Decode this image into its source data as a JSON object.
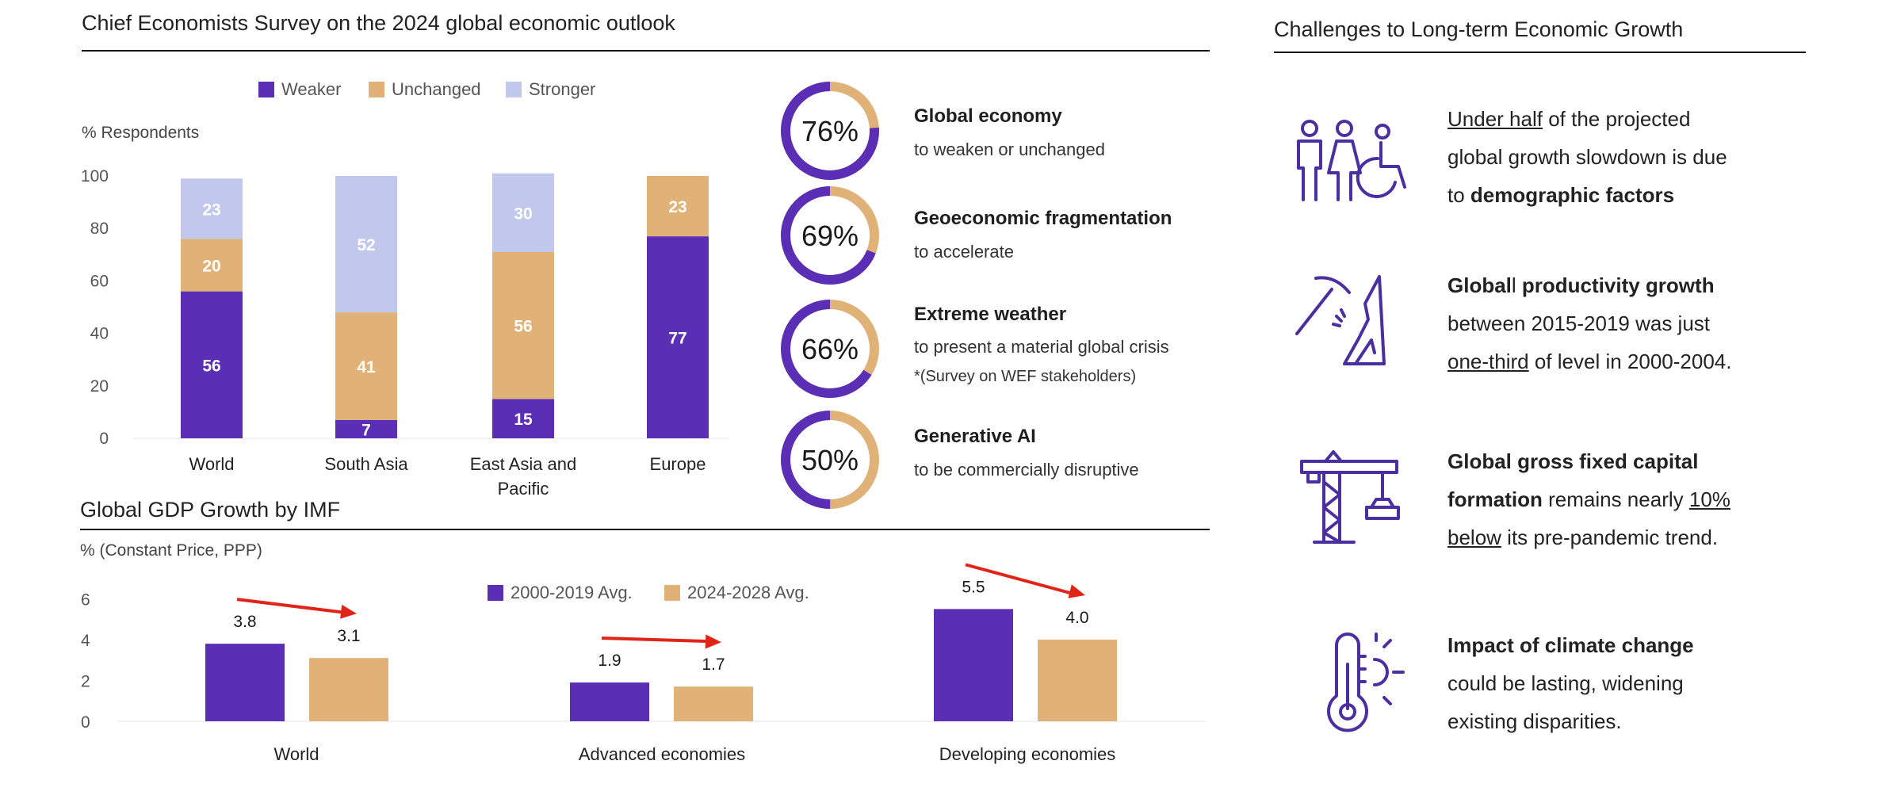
{
  "survey": {
    "title": "Chief Economists Survey on the 2024 global economic outlook",
    "legend": [
      {
        "label": "Weaker",
        "color": "#5b2fb5"
      },
      {
        "label": "Unchanged",
        "color": "#e0b277"
      },
      {
        "label": "Stronger",
        "color": "#c2c8ec"
      }
    ],
    "ylabel": "% Respondents"
  },
  "stats": [
    {
      "value": "76%",
      "pct": 76,
      "title": "Global economy",
      "sub": "to weaken or unchanged",
      "note": ""
    },
    {
      "value": "69%",
      "pct": 69,
      "title": "Geoeconomic fragmentation",
      "sub": "to accelerate",
      "note": ""
    },
    {
      "value": "66%",
      "pct": 66,
      "title": "Extreme weather",
      "sub": "to present a material global crisis",
      "note": "*(Survey on WEF stakeholders)"
    },
    {
      "value": "50%",
      "pct": 50,
      "title": "Generative AI",
      "sub": "to be commercially disruptive",
      "note": ""
    }
  ],
  "gdp": {
    "title": "Global GDP Growth by IMF",
    "ylabel": "% (Constant Price, PPP)",
    "legend": [
      {
        "label": "2000-2019 Avg.",
        "color": "#5b2fb5"
      },
      {
        "label": "2024-2028 Avg.",
        "color": "#e0b277"
      }
    ]
  },
  "challenges": {
    "title": "Challenges to Long-term Economic Growth",
    "items": [
      {
        "icon": "people-icon",
        "parts": [
          {
            "t": "Under half",
            "s": "u"
          },
          {
            "t": " of the projected",
            "s": ""
          },
          {
            "t": "\n",
            "s": "br"
          },
          {
            "t": "global growth slowdown is due",
            "s": ""
          },
          {
            "t": "\n",
            "s": "br"
          },
          {
            "t": "to ",
            "s": ""
          },
          {
            "t": "demographic factors",
            "s": "b"
          }
        ]
      },
      {
        "icon": "pickaxe-icon",
        "parts": [
          {
            "t": "Global",
            "s": "b"
          },
          {
            "t": "l",
            "s": ""
          },
          {
            "t": " productivity growth",
            "s": "b"
          },
          {
            "t": "\n",
            "s": "br"
          },
          {
            "t": "between 2015-2019 was just",
            "s": ""
          },
          {
            "t": "\n",
            "s": "br"
          },
          {
            "t": "one-third",
            "s": "u"
          },
          {
            "t": " of level in 2000-2004.",
            "s": ""
          }
        ]
      },
      {
        "icon": "crane-icon",
        "parts": [
          {
            "t": "Global gross fixed capital",
            "s": "b"
          },
          {
            "t": "\n",
            "s": "br"
          },
          {
            "t": "formation",
            "s": "b"
          },
          {
            "t": " remains nearly ",
            "s": ""
          },
          {
            "t": "10%",
            "s": "u"
          },
          {
            "t": "\n",
            "s": "br"
          },
          {
            "t": "below",
            "s": "u"
          },
          {
            "t": " its pre-pandemic trend.",
            "s": ""
          }
        ]
      },
      {
        "icon": "thermometer-icon",
        "parts": [
          {
            "t": "Impact of climate change",
            "s": "b"
          },
          {
            "t": "\n",
            "s": "br"
          },
          {
            "t": "could be lasting, widening",
            "s": ""
          },
          {
            "t": "\n",
            "s": "br"
          },
          {
            "t": "existing disparities.",
            "s": ""
          }
        ]
      }
    ]
  },
  "chart_data": [
    {
      "type": "bar",
      "stacked": true,
      "categories": [
        "World",
        "South Asia",
        "East Asia and Pacific",
        "Europe"
      ],
      "series": [
        {
          "name": "Weaker",
          "values": [
            56,
            7,
            15,
            77
          ],
          "labels": [
            "56",
            "7",
            "15",
            "77"
          ]
        },
        {
          "name": "Unchanged",
          "values": [
            20,
            41,
            56,
            23
          ],
          "labels": [
            "20",
            "41",
            "56",
            "23"
          ]
        },
        {
          "name": "Stronger",
          "values": [
            23,
            52,
            30,
            0
          ],
          "labels": [
            "23",
            "52",
            "30",
            ""
          ]
        }
      ],
      "yticks": [
        "0",
        "20",
        "40",
        "60",
        "80",
        "100"
      ],
      "ylim": [
        0,
        100
      ],
      "ylabel": "% Respondents",
      "legend_position": "top"
    },
    {
      "type": "bar",
      "categories": [
        "World",
        "Advanced economies",
        "Developing economies"
      ],
      "series": [
        {
          "name": "2000-2019 Avg.",
          "values": [
            3.8,
            1.9,
            5.5
          ],
          "labels": [
            "3.8",
            "1.9",
            "5.5"
          ]
        },
        {
          "name": "2024-2028 Avg.",
          "values": [
            3.1,
            1.7,
            4.0
          ],
          "labels": [
            "3.1",
            "1.7",
            "4.0"
          ]
        }
      ],
      "yticks": [
        "0",
        "2",
        "4",
        "6"
      ],
      "ylim": [
        0,
        6.6
      ],
      "ylabel": "% (Constant Price, PPP)",
      "legend_position": "top-center"
    }
  ]
}
